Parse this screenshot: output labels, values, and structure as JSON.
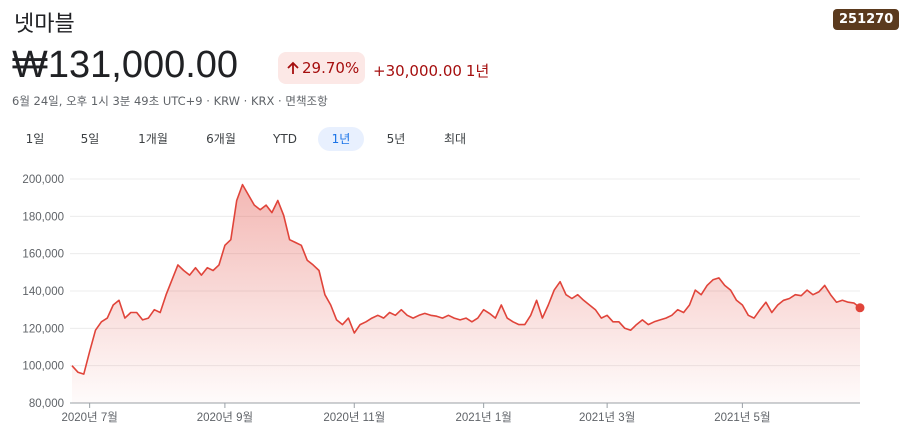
{
  "header": {
    "name": "넷마블",
    "ticker": "251270",
    "price": "₩131,000.00",
    "change_pct": "29.70%",
    "change_abs": "+30,000.00",
    "period": "1년",
    "info": "6월 24일, 오후 1시 3분 49초 UTC+9 · KRW · KRX · 면책조항"
  },
  "ranges": [
    "1일",
    "5일",
    "1개월",
    "6개월",
    "YTD",
    "1년",
    "5년",
    "최대"
  ],
  "selected_range": 5,
  "chart_data": {
    "type": "line",
    "color": "#e0443a",
    "grid": true,
    "area": true,
    "values": [
      100000,
      96500,
      95500,
      107500,
      119000,
      123500,
      125500,
      132500,
      135000,
      125500,
      128500,
      128500,
      124500,
      125500,
      130000,
      128500,
      138000,
      146000,
      154000,
      151000,
      148500,
      152500,
      148500,
      152500,
      151000,
      154000,
      164500,
      167500,
      188500,
      197000,
      191500,
      186000,
      183500,
      186000,
      182000,
      188500,
      180500,
      167500,
      166000,
      164500,
      156500,
      154000,
      151000,
      138000,
      132500,
      124500,
      122000,
      125500,
      117500,
      122000,
      123500,
      125500,
      127000,
      125500,
      128500,
      127000,
      130000,
      127000,
      125500,
      127000,
      128000,
      127000,
      126500,
      125500,
      127000,
      125500,
      124500,
      125500,
      123500,
      125500,
      130000,
      128000,
      125500,
      132500,
      125500,
      123500,
      122000,
      122000,
      127000,
      135000,
      125500,
      132500,
      140500,
      145000,
      138000,
      136000,
      138000,
      135000,
      132500,
      130000,
      125500,
      127000,
      123500,
      123500,
      120000,
      119000,
      122000,
      124500,
      122000,
      123500,
      124500,
      125500,
      127000,
      130000,
      128500,
      132500,
      140500,
      138000,
      143000,
      146000,
      147000,
      143000,
      140500,
      135000,
      132500,
      127000,
      125500,
      130000,
      134000,
      128500,
      132500,
      135000,
      136000,
      138000,
      137500,
      140500,
      138000,
      139500,
      143000,
      138000,
      134000,
      135000,
      134000,
      133500,
      131000
    ],
    "xlim": [
      0,
      134
    ],
    "xticks": [
      {
        "value": 3,
        "label": "2020년 7월"
      },
      {
        "value": 26,
        "label": "2020년 9월"
      },
      {
        "value": 48,
        "label": "2020년 11월"
      },
      {
        "value": 70,
        "label": "2021년 1월"
      },
      {
        "value": 91,
        "label": "2021년 3월"
      },
      {
        "value": 114,
        "label": "2021년 5월"
      }
    ],
    "ylim": [
      80000,
      200000
    ],
    "yticks": [
      {
        "value": 80000,
        "label": "80,000"
      },
      {
        "value": 100000,
        "label": "100,000"
      },
      {
        "value": 120000,
        "label": "120,000"
      },
      {
        "value": 140000,
        "label": "140,000"
      },
      {
        "value": 160000,
        "label": "160,000"
      },
      {
        "value": 180000,
        "label": "180,000"
      },
      {
        "value": 200000,
        "label": "200,000"
      }
    ]
  }
}
